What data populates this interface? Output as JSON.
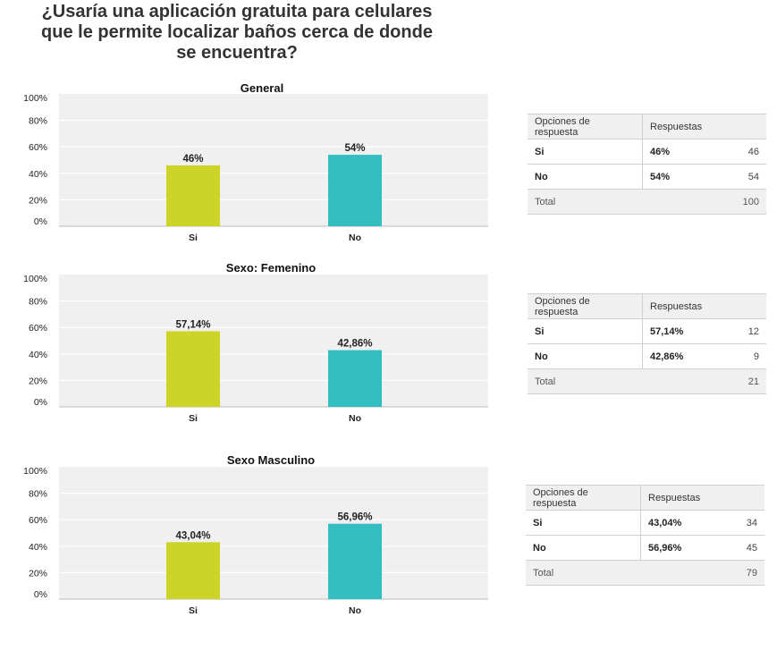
{
  "page": {
    "title": "¿Usaría una aplicación gratuita para celulares que le permite localizar baños cerca de donde se encuentra?"
  },
  "colors": {
    "si": "#cdd428",
    "no": "#33bfc1",
    "plot_bg": "#f0f0f0",
    "gridline": "#ffffff"
  },
  "chart_data": [
    {
      "type": "bar",
      "title": "General",
      "categories": [
        "Si",
        "No"
      ],
      "values": [
        46,
        54
      ],
      "value_labels": [
        "46%",
        "54%"
      ],
      "ylim": [
        0,
        100
      ],
      "yticks": [
        "0%",
        "20%",
        "40%",
        "60%",
        "80%",
        "100%"
      ],
      "grid": true
    },
    {
      "type": "bar",
      "title": "Sexo: Femenino",
      "categories": [
        "Si",
        "No"
      ],
      "values": [
        57.14,
        42.86
      ],
      "value_labels": [
        "57,14%",
        "42,86%"
      ],
      "ylim": [
        0,
        100
      ],
      "yticks": [
        "0%",
        "20%",
        "40%",
        "60%",
        "80%",
        "100%"
      ],
      "grid": true
    },
    {
      "type": "bar",
      "title": "Sexo Masculino",
      "categories": [
        "Si",
        "No"
      ],
      "values": [
        43.04,
        56.96
      ],
      "value_labels": [
        "43,04%",
        "56,96%"
      ],
      "ylim": [
        0,
        100
      ],
      "yticks": [
        "0%",
        "20%",
        "40%",
        "60%",
        "80%",
        "100%"
      ],
      "grid": true
    }
  ],
  "tables": [
    {
      "header_options": "Opciones de respuesta",
      "header_responses": "Respuestas",
      "rows": [
        {
          "option": "Si",
          "percent": "46%",
          "count": "46"
        },
        {
          "option": "No",
          "percent": "54%",
          "count": "54"
        }
      ],
      "total_label": "Total",
      "total_count": "100"
    },
    {
      "header_options": "Opciones de respuesta",
      "header_responses": "Respuestas",
      "rows": [
        {
          "option": "Si",
          "percent": "57,14%",
          "count": "12"
        },
        {
          "option": "No",
          "percent": "42,86%",
          "count": "9"
        }
      ],
      "total_label": "Total",
      "total_count": "21"
    },
    {
      "header_options": "Opciones de respuesta",
      "header_responses": "Respuestas",
      "rows": [
        {
          "option": "Si",
          "percent": "43,04%",
          "count": "34"
        },
        {
          "option": "No",
          "percent": "56,96%",
          "count": "45"
        }
      ],
      "total_label": "Total",
      "total_count": "79"
    }
  ]
}
